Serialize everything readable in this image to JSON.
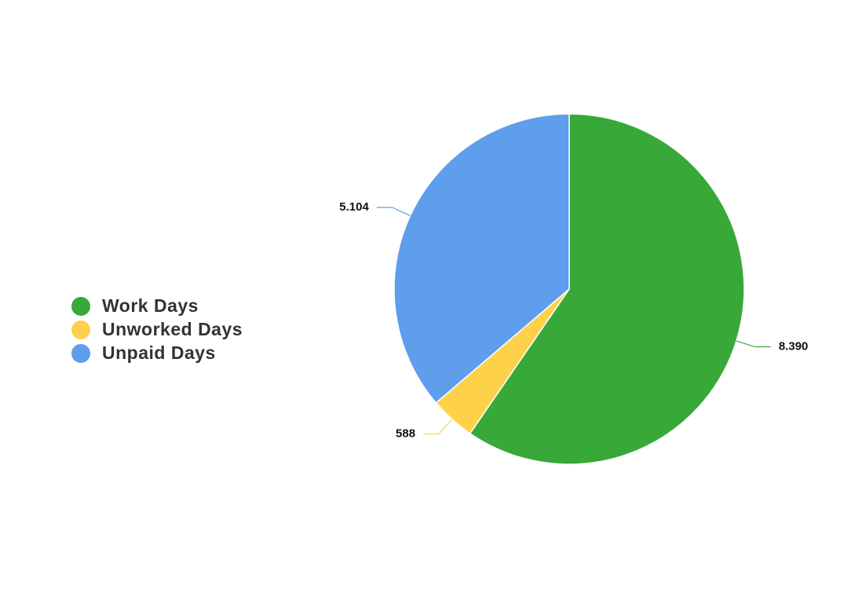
{
  "chart_data": {
    "type": "pie",
    "categories": [
      "Work Days",
      "Unworked Days",
      "Unpaid Days"
    ],
    "values": [
      8390,
      588,
      5104
    ],
    "value_labels": [
      "8.390",
      "588",
      "5.104"
    ],
    "colors": [
      "#38a838",
      "#fdd24a",
      "#5f9ded"
    ],
    "legend": "left"
  }
}
